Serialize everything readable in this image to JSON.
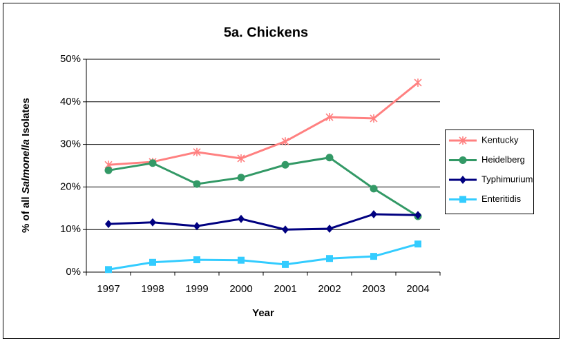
{
  "chart_data": {
    "type": "line",
    "title": "5a. Chickens",
    "xlabel": "Year",
    "ylabel": [
      "% of all ",
      "Salmonella",
      " Isolates"
    ],
    "categories": [
      "1997",
      "1998",
      "1999",
      "2000",
      "2001",
      "2002",
      "2003",
      "2004"
    ],
    "series": [
      {
        "name": "Kentucky",
        "color": "#ff8080",
        "marker": "asterisk",
        "values": [
          25.2,
          25.9,
          28.2,
          26.7,
          30.7,
          36.4,
          36.1,
          44.5
        ]
      },
      {
        "name": "Heidelberg",
        "color": "#339966",
        "marker": "circle",
        "values": [
          23.9,
          25.6,
          20.7,
          22.2,
          25.2,
          26.9,
          19.6,
          13.1
        ]
      },
      {
        "name": "Typhimurium",
        "color": "#000080",
        "marker": "diamond",
        "values": [
          11.3,
          11.7,
          10.8,
          12.5,
          10.0,
          10.2,
          13.6,
          13.4
        ]
      },
      {
        "name": "Enteritidis",
        "color": "#33ccff",
        "marker": "square",
        "values": [
          0.6,
          2.3,
          2.9,
          2.8,
          1.8,
          3.2,
          3.7,
          6.6
        ]
      }
    ],
    "ylim": [
      0,
      50
    ],
    "yticks": [
      {
        "value": 0,
        "label": "0%"
      },
      {
        "value": 10,
        "label": "10%"
      },
      {
        "value": 20,
        "label": "20%"
      },
      {
        "value": 30,
        "label": "30%"
      },
      {
        "value": 40,
        "label": "40%"
      },
      {
        "value": 50,
        "label": "50%"
      }
    ],
    "grid": true,
    "legend": "right"
  }
}
